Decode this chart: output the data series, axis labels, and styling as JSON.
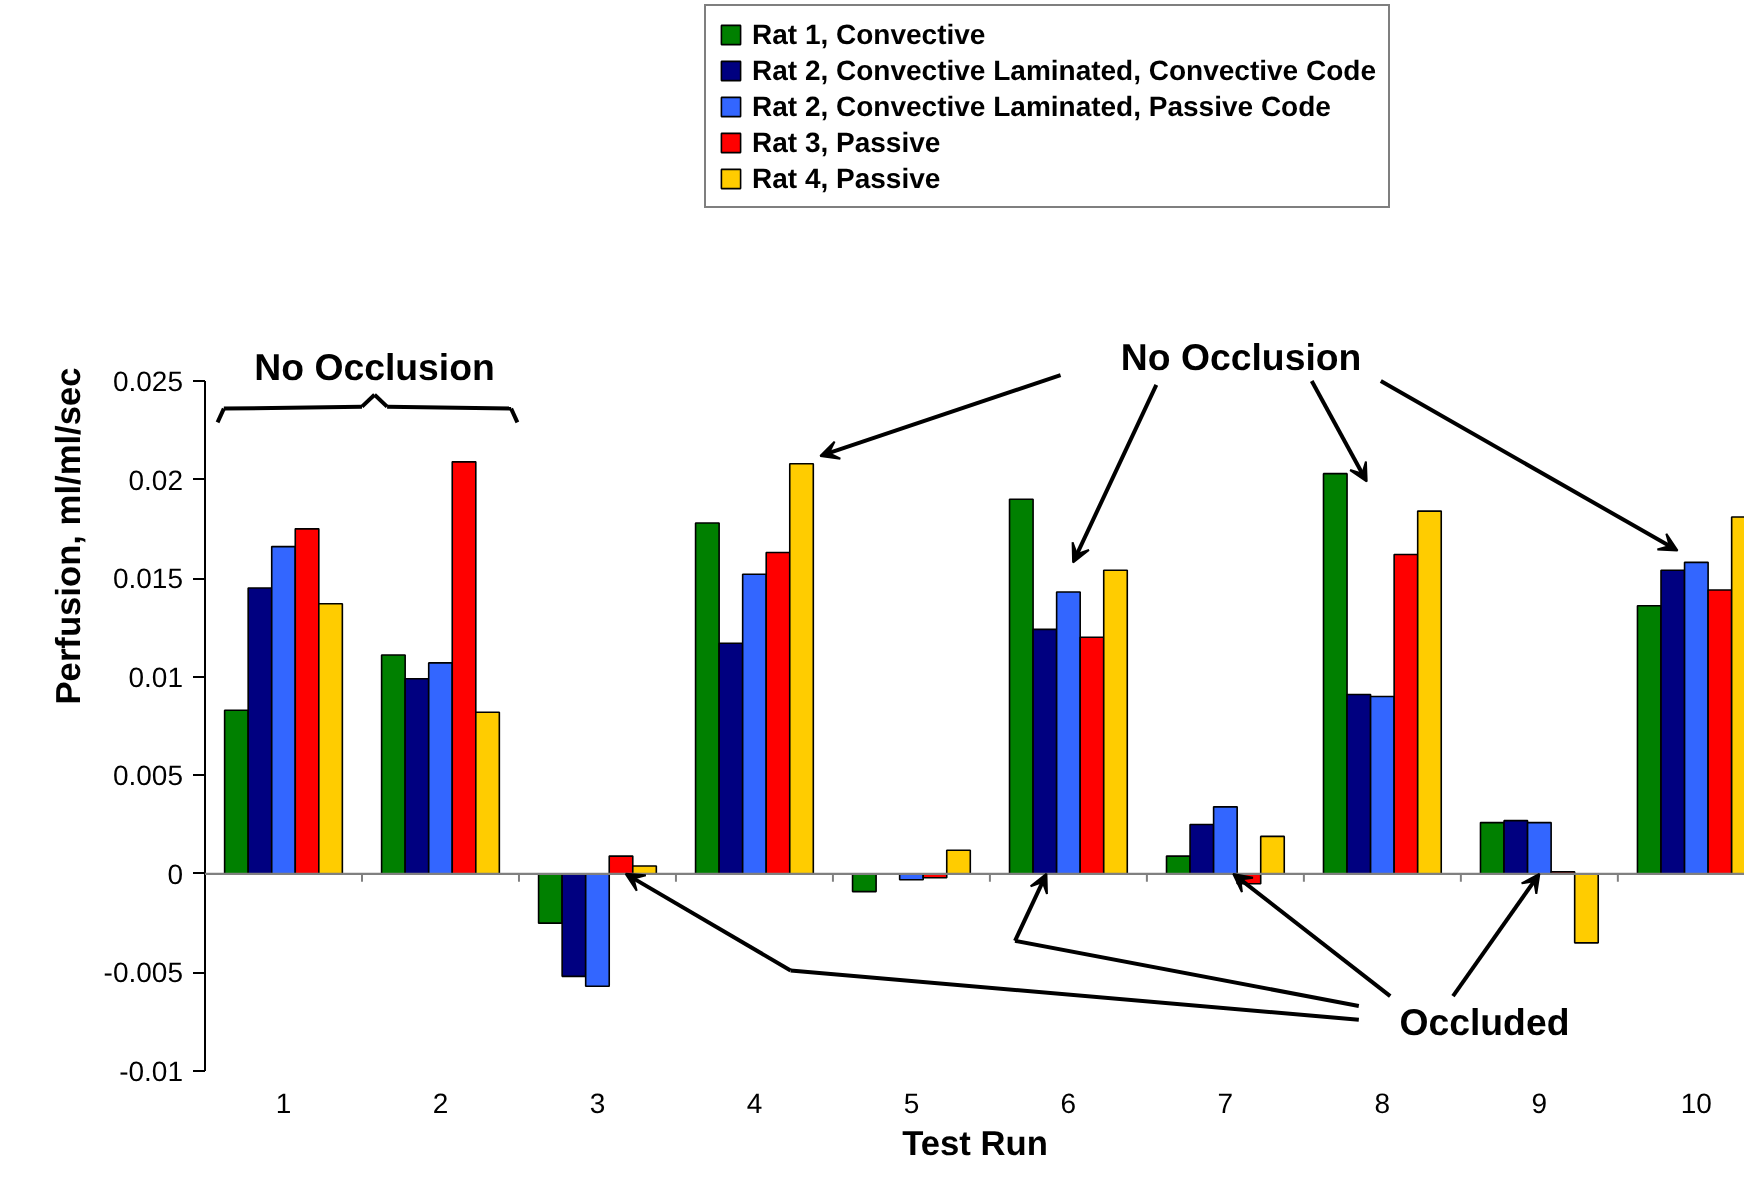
{
  "chart_data": {
    "type": "bar",
    "xlabel": "Test Run",
    "ylabel": "Perfusion, ml/ml/sec",
    "categories": [
      "1",
      "2",
      "3",
      "4",
      "5",
      "6",
      "7",
      "8",
      "9",
      "10"
    ],
    "series": [
      {
        "name": "Rat 1, Convective",
        "color": "#008000",
        "values": [
          0.0083,
          0.0111,
          -0.0025,
          0.0178,
          -0.0009,
          0.019,
          0.0009,
          0.0203,
          0.0026,
          0.0136
        ]
      },
      {
        "name": "Rat 2, Convective Laminated, Convective Code",
        "color": "#000080",
        "values": [
          0.0145,
          0.0099,
          -0.0052,
          0.0117,
          null,
          0.0124,
          0.0025,
          0.0091,
          0.0027,
          0.0154
        ]
      },
      {
        "name": "Rat 2, Convective Laminated, Passive Code",
        "color": "#3366ff",
        "values": [
          0.0166,
          0.0107,
          -0.0057,
          0.0152,
          -0.0003,
          0.0143,
          0.0034,
          0.009,
          0.0026,
          0.0158
        ]
      },
      {
        "name": "Rat 3, Passive",
        "color": "#ff0000",
        "values": [
          0.0175,
          0.0209,
          0.0009,
          0.0163,
          -0.0002,
          0.012,
          -0.0005,
          0.0162,
          0.0001,
          0.0144
        ]
      },
      {
        "name": "Rat 4, Passive",
        "color": "#ffcc00",
        "values": [
          0.0137,
          0.0082,
          0.0004,
          0.0208,
          0.0012,
          0.0154,
          0.0019,
          0.0184,
          -0.0035,
          0.0181
        ]
      }
    ],
    "ylim": [
      -0.01,
      0.025
    ],
    "yticks": [
      -0.01,
      -0.005,
      0,
      0.005,
      0.01,
      0.015,
      0.02,
      0.025
    ],
    "ref_lines": [
      {
        "axis": "y",
        "value": 0,
        "color": "#808080"
      }
    ],
    "grid": false,
    "legend": "top right",
    "annotations": [
      "No Occlusion",
      "No Occlusion",
      {
        "text": "Occluded",
        "x": "9",
        "y": 0
      }
    ]
  }
}
